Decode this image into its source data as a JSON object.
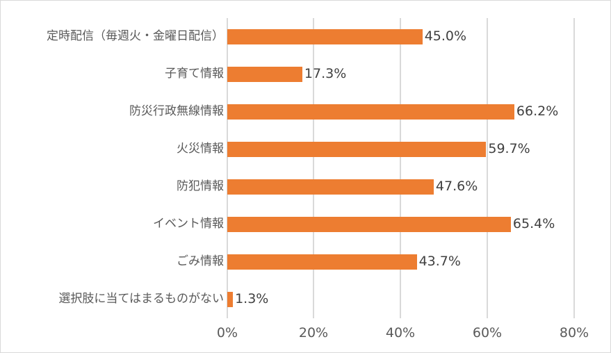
{
  "chart_data": {
    "type": "bar",
    "orientation": "horizontal",
    "title": "",
    "xlabel": "",
    "ylabel": "",
    "categories": [
      "定時配信（毎週火・金曜日配信）",
      "子育て情報",
      "防災行政無線情報",
      "火災情報",
      "防犯情報",
      "イベント情報",
      "ごみ情報",
      "選択肢に当てはまるものがない"
    ],
    "values": [
      45.0,
      17.3,
      66.2,
      59.7,
      47.6,
      65.4,
      43.7,
      1.3
    ],
    "value_labels": [
      "45.0%",
      "17.3%",
      "66.2%",
      "59.7%",
      "47.6%",
      "65.4%",
      "43.7%",
      "1.3%"
    ],
    "xlim": [
      0,
      80
    ],
    "x_ticks": [
      "0%",
      "20%",
      "40%",
      "60%",
      "80%"
    ],
    "grid": true,
    "legend": null,
    "bar_color": "#ed7d31"
  }
}
